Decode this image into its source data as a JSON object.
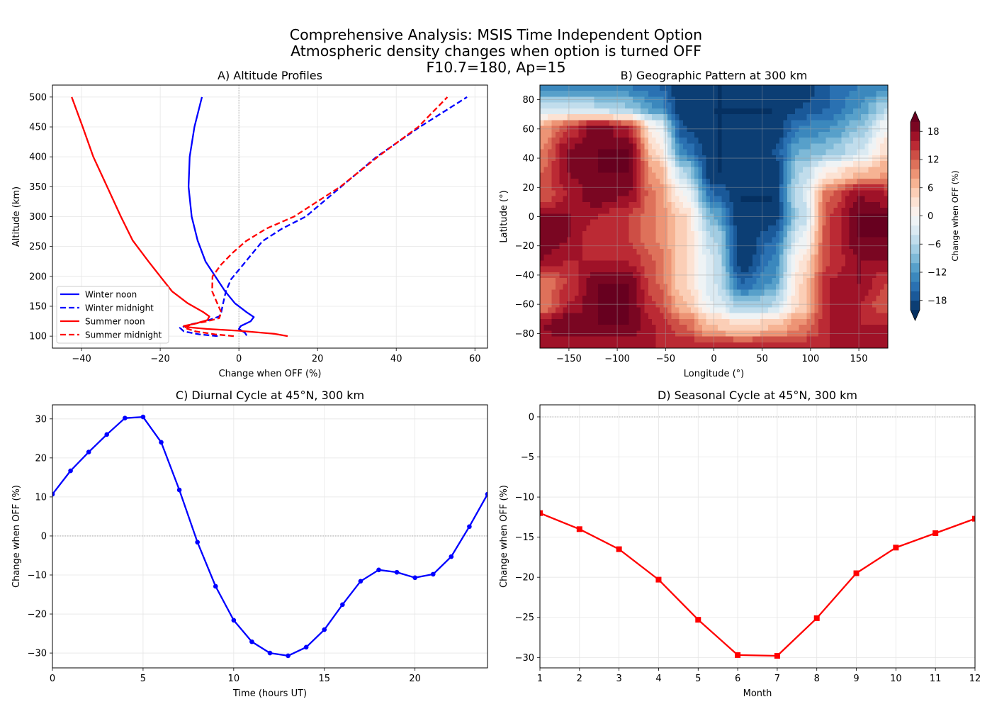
{
  "figure": {
    "title_lines": [
      "Comprehensive Analysis: MSIS Time Independent Option",
      "Atmospheric density changes when option is turned OFF",
      "F10.7=180, Ap=15"
    ]
  },
  "colors": {
    "blue": "#0000ff",
    "red": "#ff0000",
    "grid": "#e0e0e0"
  },
  "chart_data": [
    {
      "id": "A",
      "type": "line",
      "title": "A) Altitude Profiles",
      "xlabel": "Change when OFF (%)",
      "ylabel": "Altitude (km)",
      "xlim": [
        -47.4,
        63.2
      ],
      "ylim": [
        80,
        520
      ],
      "xticks": [
        -40,
        -20,
        0,
        20,
        40,
        60
      ],
      "yticks": [
        100,
        150,
        200,
        250,
        300,
        350,
        400,
        450,
        500
      ],
      "grid": true,
      "reference_line": {
        "axis": "x",
        "value": 0,
        "style": "dotted"
      },
      "legend": "lower-left",
      "series": [
        {
          "name": "Winter noon",
          "color": "#0000ff",
          "dash": "solid",
          "points": [
            [
              2.0,
              101
            ],
            [
              1.5,
              106
            ],
            [
              0,
              112
            ],
            [
              0.5,
              117
            ],
            [
              3,
              125
            ],
            [
              3.8,
              132
            ],
            [
              2,
              140
            ],
            [
              -1,
              155
            ],
            [
              -3.5,
              175
            ],
            [
              -6,
              200
            ],
            [
              -8.5,
              225
            ],
            [
              -10.5,
              260
            ],
            [
              -12,
              300
            ],
            [
              -12.8,
              350
            ],
            [
              -12.5,
              400
            ],
            [
              -11.3,
              450
            ],
            [
              -9.4,
              500
            ]
          ]
        },
        {
          "name": "Winter midnight",
          "color": "#0000ff",
          "dash": "dashed",
          "points": [
            [
              -5.4,
              100
            ],
            [
              -10,
              103
            ],
            [
              -14,
              108
            ],
            [
              -15,
              114
            ],
            [
              -12,
              120
            ],
            [
              -8,
              126
            ],
            [
              -5,
              133
            ],
            [
              -4.5,
              140
            ],
            [
              -4,
              155
            ],
            [
              -3.3,
              175
            ],
            [
              -2,
              195
            ],
            [
              0.5,
              215
            ],
            [
              3,
              235
            ],
            [
              6,
              259
            ],
            [
              11,
              280
            ],
            [
              17,
              300
            ],
            [
              26,
              350
            ],
            [
              35,
              400
            ],
            [
              46,
              450
            ],
            [
              58,
              500
            ]
          ]
        },
        {
          "name": "Summer noon",
          "color": "#ff0000",
          "dash": "solid",
          "points": [
            [
              12.4,
              100
            ],
            [
              9,
              104
            ],
            [
              0,
              109
            ],
            [
              -8,
              112
            ],
            [
              -13,
              115
            ],
            [
              -14,
              117
            ],
            [
              -11,
              121
            ],
            [
              -8,
              127
            ],
            [
              -7.5,
              133
            ],
            [
              -9,
              140
            ],
            [
              -13,
              155
            ],
            [
              -17,
              175
            ],
            [
              -20,
              200
            ],
            [
              -23,
              225
            ],
            [
              -27,
              260
            ],
            [
              -30,
              300
            ],
            [
              -33.5,
              350
            ],
            [
              -37,
              400
            ],
            [
              -39.7,
              450
            ],
            [
              -42.5,
              500
            ]
          ]
        },
        {
          "name": "Summer midnight",
          "color": "#ff0000",
          "dash": "dashed",
          "points": [
            [
              -1.3,
              100
            ],
            [
              -6,
              103
            ],
            [
              -11,
              108
            ],
            [
              -13.9,
              114
            ],
            [
              -12,
              120
            ],
            [
              -8,
              125
            ],
            [
              -5,
              130
            ],
            [
              -4.5,
              140
            ],
            [
              -5.5,
              155
            ],
            [
              -6.8,
              175
            ],
            [
              -6.7,
              200
            ],
            [
              -4.5,
              220
            ],
            [
              -1.5,
              240
            ],
            [
              1.8,
              259
            ],
            [
              7,
              280
            ],
            [
              14,
              300
            ],
            [
              25.8,
              350
            ],
            [
              35.3,
              400
            ],
            [
              45.6,
              450
            ],
            [
              53,
              500
            ]
          ]
        }
      ]
    },
    {
      "id": "B",
      "type": "heatmap",
      "title": "B) Geographic Pattern at 300 km",
      "xlabel": "Longitude (°)",
      "ylabel": "Latitude (°)",
      "xlim": [
        -180,
        180
      ],
      "ylim": [
        -90,
        90
      ],
      "xticks": [
        -150,
        -100,
        -50,
        0,
        50,
        100,
        150
      ],
      "yticks": [
        -80,
        -60,
        -40,
        -20,
        0,
        20,
        40,
        60,
        80
      ],
      "grid": true,
      "colormap": "RdBu_r",
      "levels": {
        "min": -20,
        "max": 20,
        "step": 2,
        "extend": "both"
      },
      "colorbar": {
        "label": "Change when OFF (%)",
        "ticks": [
          -18,
          -12,
          -6,
          0,
          6,
          12,
          18
        ]
      },
      "lons": [
        -180,
        -150,
        -120,
        -90,
        -60,
        -30,
        0,
        30,
        60,
        90,
        120,
        150,
        180
      ],
      "lats": [
        90,
        75,
        60,
        45,
        30,
        15,
        0,
        -15,
        -30,
        -45,
        -60,
        -75,
        -90
      ],
      "values": [
        [
          -14,
          -14,
          -14,
          -14,
          -16,
          -20,
          -20,
          -20,
          -20,
          -20,
          -16,
          -14,
          -14
        ],
        [
          -4,
          -4,
          -6,
          -8,
          -12,
          -20,
          -20,
          -20,
          -20,
          -18,
          -16,
          -12,
          -6
        ],
        [
          8,
          14,
          20,
          16,
          0,
          -18,
          -20,
          -20,
          -20,
          -14,
          -12,
          -8,
          0
        ],
        [
          10,
          18,
          20,
          20,
          4,
          -14,
          -20,
          -20,
          -18,
          -10,
          -8,
          -4,
          4
        ],
        [
          12,
          18,
          20,
          20,
          8,
          -6,
          -20,
          -20,
          -20,
          -6,
          2,
          6,
          8
        ],
        [
          12,
          16,
          20,
          18,
          10,
          0,
          -16,
          -20,
          -20,
          -4,
          12,
          18,
          16
        ],
        [
          18,
          18,
          16,
          14,
          10,
          4,
          -10,
          -20,
          -20,
          -6,
          14,
          20,
          20
        ],
        [
          20,
          18,
          14,
          14,
          10,
          4,
          -6,
          -20,
          -16,
          -2,
          14,
          20,
          20
        ],
        [
          18,
          16,
          16,
          16,
          12,
          4,
          -4,
          -20,
          -14,
          2,
          14,
          18,
          18
        ],
        [
          10,
          14,
          20,
          20,
          12,
          4,
          -4,
          -16,
          -12,
          4,
          16,
          18,
          14
        ],
        [
          10,
          16,
          20,
          20,
          14,
          6,
          -2,
          -8,
          -6,
          4,
          16,
          16,
          12
        ],
        [
          18,
          20,
          20,
          20,
          16,
          12,
          6,
          4,
          6,
          10,
          16,
          16,
          16
        ],
        [
          16,
          16,
          16,
          16,
          16,
          16,
          16,
          16,
          16,
          16,
          16,
          16,
          16
        ]
      ]
    },
    {
      "id": "C",
      "type": "line",
      "title": "C) Diurnal Cycle at 45°N, 300 km",
      "xlabel": "Time (hours UT)",
      "ylabel": "Change when OFF (%)",
      "xlim": [
        0,
        24
      ],
      "ylim": [
        -33.8,
        33.6
      ],
      "xticks": [
        0,
        5,
        10,
        15,
        20
      ],
      "yticks": [
        -30,
        -20,
        -10,
        0,
        10,
        20,
        30
      ],
      "grid": true,
      "reference_line": {
        "axis": "y",
        "value": 0,
        "style": "dotted"
      },
      "marker": "circle",
      "series": [
        {
          "color": "#0000ff",
          "x": [
            0,
            1,
            2,
            3,
            4,
            5,
            6,
            7,
            8,
            9,
            10,
            11,
            12,
            13,
            14,
            15,
            16,
            17,
            18,
            19,
            20,
            21,
            22,
            23,
            24
          ],
          "y": [
            10.7,
            16.7,
            21.5,
            26.0,
            30.2,
            30.5,
            24.0,
            11.8,
            -1.6,
            -12.9,
            -21.6,
            -27.1,
            -30.0,
            -30.7,
            -28.5,
            -24.0,
            -17.6,
            -11.6,
            -8.7,
            -9.3,
            -10.7,
            -9.8,
            -5.3,
            2.4,
            10.7
          ]
        }
      ]
    },
    {
      "id": "D",
      "type": "line",
      "title": "D) Seasonal Cycle at 45°N, 300 km",
      "xlabel": "Month",
      "ylabel": "Change when OFF (%)",
      "xlim": [
        1,
        12
      ],
      "ylim": [
        -31.3,
        1.5
      ],
      "xticks": [
        1,
        2,
        3,
        4,
        5,
        6,
        7,
        8,
        9,
        10,
        11,
        12
      ],
      "yticks": [
        -30,
        -25,
        -20,
        -15,
        -10,
        -5,
        0
      ],
      "grid": true,
      "reference_line": {
        "axis": "y",
        "value": 0,
        "style": "dotted"
      },
      "marker": "square",
      "series": [
        {
          "color": "#ff0000",
          "x": [
            1,
            2,
            3,
            4,
            5,
            6,
            7,
            8,
            9,
            10,
            11,
            12
          ],
          "y": [
            -12.0,
            -14.0,
            -16.5,
            -20.3,
            -25.3,
            -29.7,
            -29.8,
            -25.1,
            -19.5,
            -16.3,
            -14.5,
            -12.7
          ]
        }
      ]
    }
  ]
}
